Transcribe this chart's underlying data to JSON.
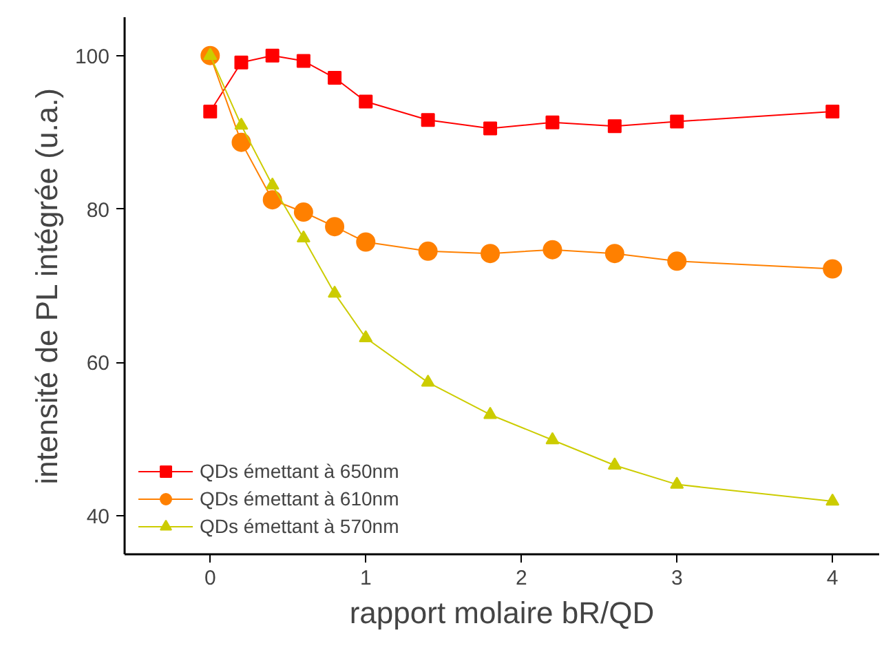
{
  "chart_data": {
    "type": "line",
    "xlabel": "rapport molaire bR/QD",
    "ylabel": "intensité de PL intégrée (u.a.)",
    "x": [
      0,
      0.2,
      0.4,
      0.6,
      0.8,
      1,
      1.4,
      1.8,
      2.2,
      2.6,
      3,
      4
    ],
    "xlim": [
      -0.55,
      4.3
    ],
    "xticks": [
      0,
      1,
      2,
      3,
      4
    ],
    "ylim": [
      35,
      105
    ],
    "yticks": [
      40,
      60,
      80,
      100
    ],
    "legend": "bottom left",
    "grid": false,
    "line_style": "solid",
    "series": [
      {
        "name": "QDs émettant à 650nm",
        "color": "#ff0000",
        "marker": "square",
        "values": [
          92.7,
          99.1,
          100,
          99.3,
          97.1,
          94,
          91.6,
          90.5,
          91.3,
          90.8,
          91.4,
          92.7
        ]
      },
      {
        "name": "QDs émettant à 610nm",
        "color": "#ff8000",
        "marker": "circle",
        "values": [
          100,
          88.7,
          81.2,
          79.6,
          77.7,
          75.7,
          74.5,
          74.2,
          74.7,
          74.2,
          73.2,
          72.2
        ]
      },
      {
        "name": "QDs émettant à 570nm",
        "color": "#cccc00",
        "marker": "triangle",
        "values": [
          100,
          90.9,
          83.1,
          76.2,
          69,
          63.2,
          57.4,
          53.2,
          49.9,
          46.6,
          44.1,
          41.9
        ]
      }
    ]
  }
}
